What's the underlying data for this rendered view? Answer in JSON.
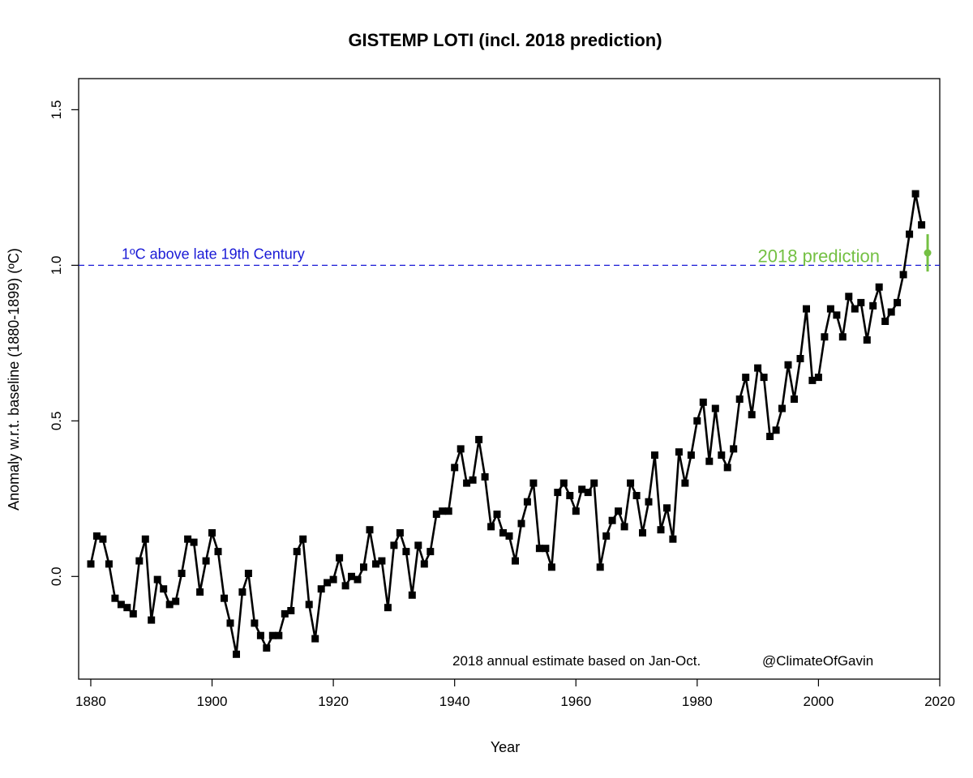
{
  "chart_data": {
    "type": "line",
    "title": "GISTEMP LOTI (incl. 2018 prediction)",
    "xlabel": "Year",
    "ylabel": "Anomaly w.r.t. baseline (1880-1899) (ºC)",
    "xlim": [
      1878,
      2020
    ],
    "ylim": [
      -0.33,
      1.6
    ],
    "xticks": [
      1880,
      1900,
      1920,
      1940,
      1960,
      1980,
      2000,
      2020
    ],
    "yticks": [
      0.0,
      0.5,
      1.0,
      1.5
    ],
    "xtick_labels": [
      "1880",
      "1900",
      "1920",
      "1940",
      "1960",
      "1980",
      "2000",
      "2020"
    ],
    "ytick_labels": [
      "0.0",
      "0.5",
      "1.0",
      "1.5"
    ],
    "grid": false,
    "series": [
      {
        "color": "#000000",
        "marker": "square",
        "x": [
          1880,
          1881,
          1882,
          1883,
          1884,
          1885,
          1886,
          1887,
          1888,
          1889,
          1890,
          1891,
          1892,
          1893,
          1894,
          1895,
          1896,
          1897,
          1898,
          1899,
          1900,
          1901,
          1902,
          1903,
          1904,
          1905,
          1906,
          1907,
          1908,
          1909,
          1910,
          1911,
          1912,
          1913,
          1914,
          1915,
          1916,
          1917,
          1918,
          1919,
          1920,
          1921,
          1922,
          1923,
          1924,
          1925,
          1926,
          1927,
          1928,
          1929,
          1930,
          1931,
          1932,
          1933,
          1934,
          1935,
          1936,
          1937,
          1938,
          1939,
          1940,
          1941,
          1942,
          1943,
          1944,
          1945,
          1946,
          1947,
          1948,
          1949,
          1950,
          1951,
          1952,
          1953,
          1954,
          1955,
          1956,
          1957,
          1958,
          1959,
          1960,
          1961,
          1962,
          1963,
          1964,
          1965,
          1966,
          1967,
          1968,
          1969,
          1970,
          1971,
          1972,
          1973,
          1974,
          1975,
          1976,
          1977,
          1978,
          1979,
          1980,
          1981,
          1982,
          1983,
          1984,
          1985,
          1986,
          1987,
          1988,
          1989,
          1990,
          1991,
          1992,
          1993,
          1994,
          1995,
          1996,
          1997,
          1998,
          1999,
          2000,
          2001,
          2002,
          2003,
          2004,
          2005,
          2006,
          2007,
          2008,
          2009,
          2010,
          2011,
          2012,
          2013,
          2014,
          2015,
          2016,
          2017
        ],
        "y": [
          0.04,
          0.13,
          0.12,
          0.04,
          -0.07,
          -0.09,
          -0.1,
          -0.12,
          0.05,
          0.12,
          -0.14,
          -0.01,
          -0.04,
          -0.09,
          -0.08,
          0.01,
          0.12,
          0.11,
          -0.05,
          0.05,
          0.14,
          0.08,
          -0.07,
          -0.15,
          -0.25,
          -0.05,
          0.01,
          -0.15,
          -0.19,
          -0.23,
          -0.19,
          -0.19,
          -0.12,
          -0.11,
          0.08,
          0.12,
          -0.09,
          -0.2,
          -0.04,
          -0.02,
          -0.01,
          0.06,
          -0.03,
          0.0,
          -0.01,
          0.03,
          0.15,
          0.04,
          0.05,
          -0.1,
          0.1,
          0.14,
          0.08,
          -0.06,
          0.1,
          0.04,
          0.08,
          0.2,
          0.21,
          0.21,
          0.35,
          0.41,
          0.3,
          0.31,
          0.44,
          0.32,
          0.16,
          0.2,
          0.14,
          0.13,
          0.05,
          0.17,
          0.24,
          0.3,
          0.09,
          0.09,
          0.03,
          0.27,
          0.3,
          0.26,
          0.21,
          0.28,
          0.27,
          0.3,
          0.03,
          0.13,
          0.18,
          0.21,
          0.16,
          0.3,
          0.26,
          0.14,
          0.24,
          0.39,
          0.15,
          0.22,
          0.12,
          0.4,
          0.3,
          0.39,
          0.5,
          0.56,
          0.37,
          0.54,
          0.39,
          0.35,
          0.41,
          0.57,
          0.64,
          0.52,
          0.67,
          0.64,
          0.45,
          0.47,
          0.54,
          0.68,
          0.57,
          0.7,
          0.86,
          0.63,
          0.64,
          0.77,
          0.86,
          0.84,
          0.77,
          0.9,
          0.86,
          0.88,
          0.76,
          0.87,
          0.93,
          0.82,
          0.85,
          0.88,
          0.97,
          1.1,
          1.23,
          1.13
        ]
      }
    ],
    "prediction": {
      "x": 2018,
      "y": 1.04,
      "low": 0.98,
      "high": 1.1,
      "color": "#74c043",
      "label": "2018 prediction"
    },
    "reference_line": {
      "y": 1.0,
      "color": "#1a1ad6",
      "style": "dashed",
      "label": "1ºC above late 19th Century"
    },
    "annotations": {
      "note": "2018 annual estimate based on Jan-Oct.",
      "credit": "@ClimateOfGavin"
    }
  }
}
